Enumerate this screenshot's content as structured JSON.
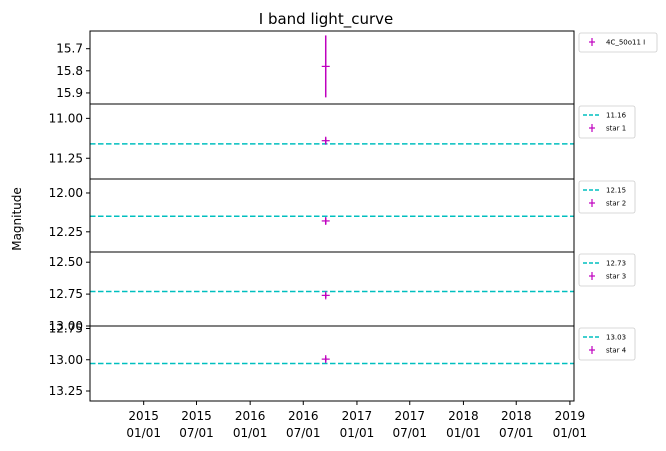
{
  "chart_data": {
    "type": "scatter",
    "title": "I band light_curve",
    "ylabel": "Magnitude",
    "xlabel": "",
    "x_range": [
      "2014-07-01",
      "2019-01-15"
    ],
    "x_ticks": [
      "2015-01-01",
      "2015-07-01",
      "2016-01-01",
      "2016-07-01",
      "2017-01-01",
      "2017-07-01",
      "2018-01-01",
      "2018-07-01",
      "2019-01-01"
    ],
    "x_tick_labels": [
      [
        "2015",
        "01/01"
      ],
      [
        "2015",
        "07/01"
      ],
      [
        "2016",
        "01/01"
      ],
      [
        "2016",
        "07/01"
      ],
      [
        "2017",
        "01/01"
      ],
      [
        "2017",
        "07/01"
      ],
      [
        "2018",
        "01/01"
      ],
      [
        "2018",
        "07/01"
      ],
      [
        "2019",
        "01/01"
      ]
    ],
    "y_axis_inverted": true,
    "colors": {
      "points": "#bf00bf",
      "reference_line": "#00bfbf"
    },
    "panels": [
      {
        "ylim": [
          15.95,
          15.62
        ],
        "yticks": [
          15.7,
          15.8,
          15.9
        ],
        "ytick_labels": [
          "15.7",
          "15.8",
          "15.9"
        ],
        "series": [
          {
            "name": "4C_50o11 I",
            "points": [
              {
                "x": "2016-09-16",
                "y": 15.78,
                "yerr": 0.14
              }
            ]
          }
        ]
      },
      {
        "ylim": [
          11.38,
          10.91
        ],
        "yticks": [
          11.0,
          11.25
        ],
        "ytick_labels": [
          "11.00",
          "11.25"
        ],
        "reference_line": {
          "label": "11.16",
          "y": 11.16
        },
        "series": [
          {
            "name": "star 1",
            "points": [
              {
                "x": "2016-09-16",
                "y": 11.14,
                "yerr": 0.02
              }
            ]
          }
        ]
      },
      {
        "ylim": [
          12.38,
          11.91
        ],
        "yticks": [
          12.0,
          12.25
        ],
        "ytick_labels": [
          "12.00",
          "12.25"
        ],
        "reference_line": {
          "label": "12.15",
          "y": 12.15
        },
        "series": [
          {
            "name": "star 2",
            "points": [
              {
                "x": "2016-09-16",
                "y": 12.18,
                "yerr": 0.02
              }
            ]
          }
        ]
      },
      {
        "ylim": [
          13.0,
          12.42
        ],
        "yticks": [
          12.5,
          12.75,
          13.0
        ],
        "ytick_labels": [
          "12.50",
          "12.75",
          "13.00"
        ],
        "reference_line": {
          "label": "12.73",
          "y": 12.73
        },
        "series": [
          {
            "name": "star 3",
            "points": [
              {
                "x": "2016-09-16",
                "y": 12.76,
                "yerr": 0.02
              }
            ]
          }
        ]
      },
      {
        "ylim": [
          13.33,
          12.73
        ],
        "yticks": [
          12.75,
          13.0,
          13.25
        ],
        "ytick_labels": [
          "12.75",
          "13.00",
          "13.25"
        ],
        "reference_line": {
          "label": "13.03",
          "y": 13.03
        },
        "series": [
          {
            "name": "star 4",
            "points": [
              {
                "x": "2016-09-16",
                "y": 12.995,
                "yerr": 0.02
              }
            ]
          }
        ]
      }
    ]
  }
}
